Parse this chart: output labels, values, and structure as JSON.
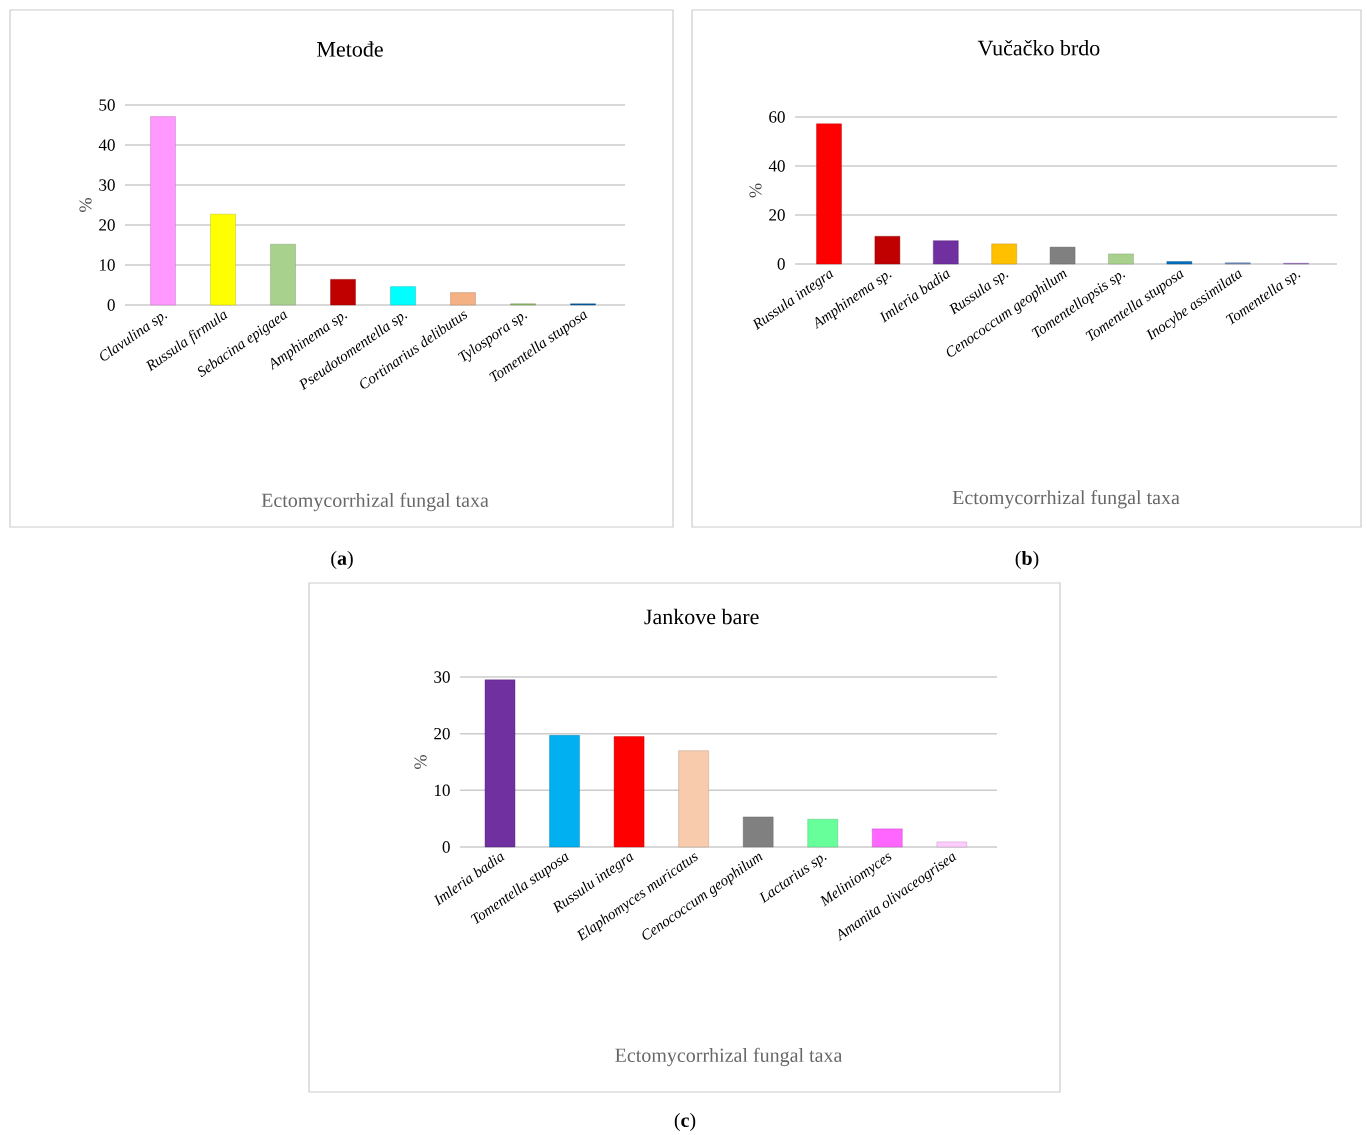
{
  "chart_data": [
    {
      "type": "bar",
      "title": "Metođe",
      "xlabel": "Ectomycorrhizal fungal taxa",
      "ylabel": "%",
      "categories": [
        "Clavulina sp.",
        "Russula firmula",
        "Sebacina epigaea",
        "Amphinema sp.",
        "Pseudotomentella sp.",
        "Cortinarius delibutus",
        "Tylospora sp.",
        "Tomentella stuposa"
      ],
      "values": [
        47.1,
        22.7,
        15.2,
        6.4,
        4.6,
        3.1,
        0.3,
        0.3
      ],
      "colors": [
        "#ff99ff",
        "#ffff00",
        "#a9d18e",
        "#c00000",
        "#00ffff",
        "#f4b183",
        "#8fbc6b",
        "#0060a8"
      ],
      "ylim": [
        0,
        50
      ],
      "yticks": [
        0,
        10,
        20,
        30,
        40,
        50
      ],
      "grid": "y",
      "annotations": [
        "(**a**)"
      ]
    },
    {
      "type": "bar",
      "title": "Vučačko brdo",
      "xlabel": "Ectomycorrhizal fungal taxa",
      "ylabel": "%",
      "categories": [
        "Russula integra",
        "Amphinema sp.",
        "Imleria badia",
        "Russula sp.",
        "Cenococcum geophilum",
        "Tomentellopsis sp.",
        "Tomentella stuposa",
        "Inocybe assimilata",
        "Tomentella sp."
      ],
      "values": [
        57.2,
        11.3,
        9.5,
        8.2,
        6.9,
        4.1,
        1.0,
        0.5,
        0.3
      ],
      "colors": [
        "#ff0000",
        "#c00000",
        "#7030a0",
        "#ffc000",
        "#808080",
        "#a9d18e",
        "#0070c0",
        "#6f8fc0",
        "#a070d0"
      ],
      "ylim": [
        0,
        60
      ],
      "yticks": [
        0,
        20,
        40,
        60
      ],
      "grid": "y",
      "annotations": [
        "(**b**)"
      ]
    },
    {
      "type": "bar",
      "title": "Jankove bare",
      "xlabel": "Ectomycorrhizal fungal taxa",
      "ylabel": "%",
      "categories": [
        "Imleria badia",
        "Tomentella stuposa",
        "Russulu integra",
        "Elaphomyces muricatus",
        "Cenococcum geophilum",
        "Lactarius sp.",
        "Meliniomyces",
        "Amanita olivaceogrisea"
      ],
      "values": [
        29.5,
        19.7,
        19.5,
        17.0,
        5.3,
        4.9,
        3.2,
        0.9
      ],
      "colors": [
        "#7030a0",
        "#00b0f0",
        "#ff0000",
        "#f8cbad",
        "#808080",
        "#66ff99",
        "#ff66ff",
        "#ffccff"
      ],
      "ylim": [
        0,
        30
      ],
      "yticks": [
        0,
        10,
        20,
        30
      ],
      "grid": "y",
      "annotations": [
        "(**c**)"
      ]
    }
  ]
}
